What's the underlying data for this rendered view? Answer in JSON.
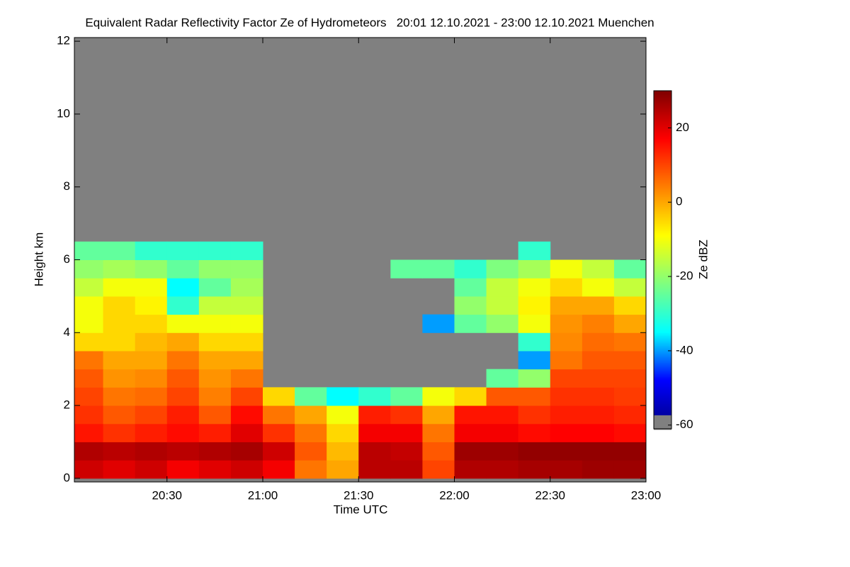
{
  "chart_data": {
    "type": "heatmap",
    "title": "Equivalent Radar Reflectivity Factor Ze of Hydrometeors   20:01 12.10.2021 - 23:00 12.10.2021 Muenchen",
    "x_label": "Time UTC",
    "y_label": "Height km",
    "colorbar_label": "Ze dBZ",
    "x": [
      1205,
      1215,
      1225,
      1235,
      1245,
      1255,
      1265,
      1275,
      1285,
      1295,
      1305,
      1315,
      1325,
      1335,
      1345,
      1355,
      1365,
      1375
    ],
    "y": [
      0.25,
      0.75,
      1.25,
      1.75,
      2.25,
      2.75,
      3.25,
      3.75,
      4.25,
      4.75,
      5.25,
      5.75,
      6.25
    ],
    "values": [
      [
        22,
        20,
        22,
        18,
        20,
        22,
        18,
        5,
        0,
        24,
        24,
        10,
        25,
        25,
        26,
        26,
        27,
        27
      ],
      [
        25,
        24,
        25,
        24,
        25,
        26,
        22,
        8,
        -2,
        24,
        23,
        8,
        27,
        27,
        28,
        28,
        28,
        28
      ],
      [
        15,
        12,
        14,
        16,
        14,
        20,
        12,
        5,
        -5,
        18,
        18,
        5,
        18,
        18,
        16,
        17,
        17,
        16
      ],
      [
        12,
        8,
        10,
        14,
        8,
        16,
        5,
        0,
        -10,
        14,
        12,
        0,
        15,
        15,
        12,
        14,
        14,
        13
      ],
      [
        10,
        5,
        6,
        10,
        4,
        10,
        -5,
        -25,
        -35,
        -30,
        -25,
        -10,
        -5,
        8,
        8,
        12,
        12,
        11
      ],
      [
        8,
        2,
        3,
        8,
        2,
        5,
        null,
        null,
        null,
        null,
        null,
        null,
        null,
        -25,
        -20,
        10,
        10,
        10
      ],
      [
        5,
        0,
        0,
        5,
        0,
        0,
        null,
        null,
        null,
        null,
        null,
        null,
        null,
        null,
        -40,
        5,
        8,
        8
      ],
      [
        -5,
        -5,
        -2,
        0,
        -5,
        -5,
        null,
        null,
        null,
        null,
        null,
        null,
        null,
        null,
        -30,
        3,
        6,
        5
      ],
      [
        -10,
        -5,
        -5,
        -10,
        -10,
        -10,
        null,
        null,
        null,
        null,
        null,
        -40,
        -25,
        -20,
        -10,
        2,
        4,
        0
      ],
      [
        -10,
        -5,
        -8,
        -30,
        -15,
        -15,
        null,
        null,
        null,
        null,
        null,
        null,
        -20,
        -15,
        -8,
        0,
        0,
        -5
      ],
      [
        -15,
        -10,
        -10,
        -35,
        -25,
        -18,
        null,
        null,
        null,
        null,
        null,
        null,
        -25,
        -15,
        -10,
        -5,
        -10,
        -15
      ],
      [
        -20,
        -18,
        -20,
        -25,
        -20,
        -20,
        null,
        null,
        null,
        null,
        -25,
        -25,
        -30,
        -22,
        -18,
        -10,
        -15,
        -25
      ],
      [
        -25,
        -25,
        -30,
        -30,
        -30,
        -30,
        null,
        null,
        null,
        null,
        null,
        null,
        null,
        null,
        -30,
        null,
        null,
        null
      ]
    ],
    "xlim": [
      1201,
      1380
    ],
    "xticks": [
      {
        "value": 1230,
        "label": "20:30"
      },
      {
        "value": 1260,
        "label": "21:00"
      },
      {
        "value": 1290,
        "label": "21:30"
      },
      {
        "value": 1320,
        "label": "22:00"
      },
      {
        "value": 1350,
        "label": "22:30"
      },
      {
        "value": 1380,
        "label": "23:00"
      }
    ],
    "ylim": [
      -0.1,
      12.1
    ],
    "yticks": [
      0,
      2,
      4,
      6,
      8,
      10,
      12
    ],
    "clim": [
      -61,
      30
    ],
    "cticks": [
      -60,
      -40,
      -20,
      0,
      20
    ],
    "colormap": [
      "#00007f",
      "#0000ff",
      "#00ffff",
      "#7fff7f",
      "#ffff00",
      "#ff7f00",
      "#ff0000",
      "#7f0000"
    ],
    "background_color": "#808080"
  }
}
